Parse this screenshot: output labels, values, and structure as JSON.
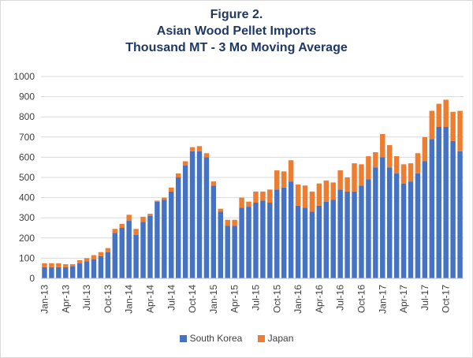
{
  "titles": {
    "line1": "Figure 2.",
    "line2": "Asian Wood Pellet Imports",
    "line3": "Thousand MT - 3 Mo Moving Average"
  },
  "chart_data": {
    "type": "bar",
    "stacked": true,
    "title": "Figure 2. Asian Wood Pellet Imports Thousand MT - 3 Mo Moving Average",
    "xlabel": "",
    "ylabel": "",
    "ylim": [
      0,
      1000
    ],
    "yticks": [
      0,
      100,
      200,
      300,
      400,
      500,
      600,
      700,
      800,
      900,
      1000
    ],
    "grid": true,
    "legend": "bottom",
    "categories": [
      "Jan-13",
      "Feb-13",
      "Mar-13",
      "Apr-13",
      "May-13",
      "Jun-13",
      "Jul-13",
      "Aug-13",
      "Sep-13",
      "Oct-13",
      "Nov-13",
      "Dec-13",
      "Jan-14",
      "Feb-14",
      "Mar-14",
      "Apr-14",
      "May-14",
      "Jun-14",
      "Jul-14",
      "Aug-14",
      "Sep-14",
      "Oct-14",
      "Nov-14",
      "Dec-14",
      "Jan-15",
      "Feb-15",
      "Mar-15",
      "Apr-15",
      "May-15",
      "Jun-15",
      "Jul-15",
      "Aug-15",
      "Sep-15",
      "Oct-15",
      "Nov-15",
      "Dec-15",
      "Jan-16",
      "Feb-16",
      "Mar-16",
      "Apr-16",
      "May-16",
      "Jun-16",
      "Jul-16",
      "Aug-16",
      "Sep-16",
      "Oct-16",
      "Nov-16",
      "Dec-16",
      "Jan-17",
      "Feb-17",
      "Mar-17",
      "Apr-17",
      "May-17",
      "Jun-17",
      "Jul-17",
      "Aug-17",
      "Sep-17",
      "Oct-17",
      "Nov-17",
      "Dec-17"
    ],
    "x_tick_labels": [
      "Jan-13",
      "Apr-13",
      "Jul-13",
      "Oct-13",
      "Jan-14",
      "Apr-14",
      "Jul-14",
      "Oct-14",
      "Jan-15",
      "Apr-15",
      "Jul-15",
      "Oct-15",
      "Jan-16",
      "Apr-16",
      "Jul-16",
      "Oct-16",
      "Jan-17",
      "Apr-17",
      "Jul-17",
      "Oct-17"
    ],
    "series": [
      {
        "name": "South Korea",
        "color": "#4472c4",
        "values": [
          55,
          55,
          55,
          55,
          60,
          75,
          85,
          95,
          110,
          130,
          225,
          250,
          285,
          215,
          280,
          310,
          380,
          390,
          430,
          500,
          560,
          630,
          630,
          600,
          460,
          330,
          260,
          260,
          350,
          355,
          375,
          385,
          375,
          440,
          450,
          480,
          360,
          350,
          330,
          360,
          380,
          390,
          440,
          430,
          430,
          460,
          490,
          550,
          600,
          550,
          520,
          470,
          480,
          520,
          580,
          690,
          750,
          750,
          680,
          630
        ],
        "colors": null
      },
      {
        "name": "Japan",
        "color": "#ed7d31",
        "values": [
          20,
          20,
          20,
          15,
          10,
          15,
          15,
          20,
          20,
          20,
          20,
          20,
          30,
          30,
          25,
          10,
          5,
          10,
          20,
          20,
          20,
          20,
          25,
          20,
          20,
          15,
          30,
          30,
          50,
          25,
          55,
          45,
          65,
          95,
          80,
          105,
          105,
          110,
          100,
          110,
          105,
          85,
          95,
          70,
          140,
          105,
          115,
          75,
          115,
          110,
          85,
          95,
          90,
          100,
          120,
          140,
          115,
          135,
          145,
          200
        ]
      }
    ]
  },
  "legend": {
    "items": [
      {
        "label": "South Korea",
        "color": "#4472c4"
      },
      {
        "label": "Japan",
        "color": "#ed7d31"
      }
    ]
  }
}
